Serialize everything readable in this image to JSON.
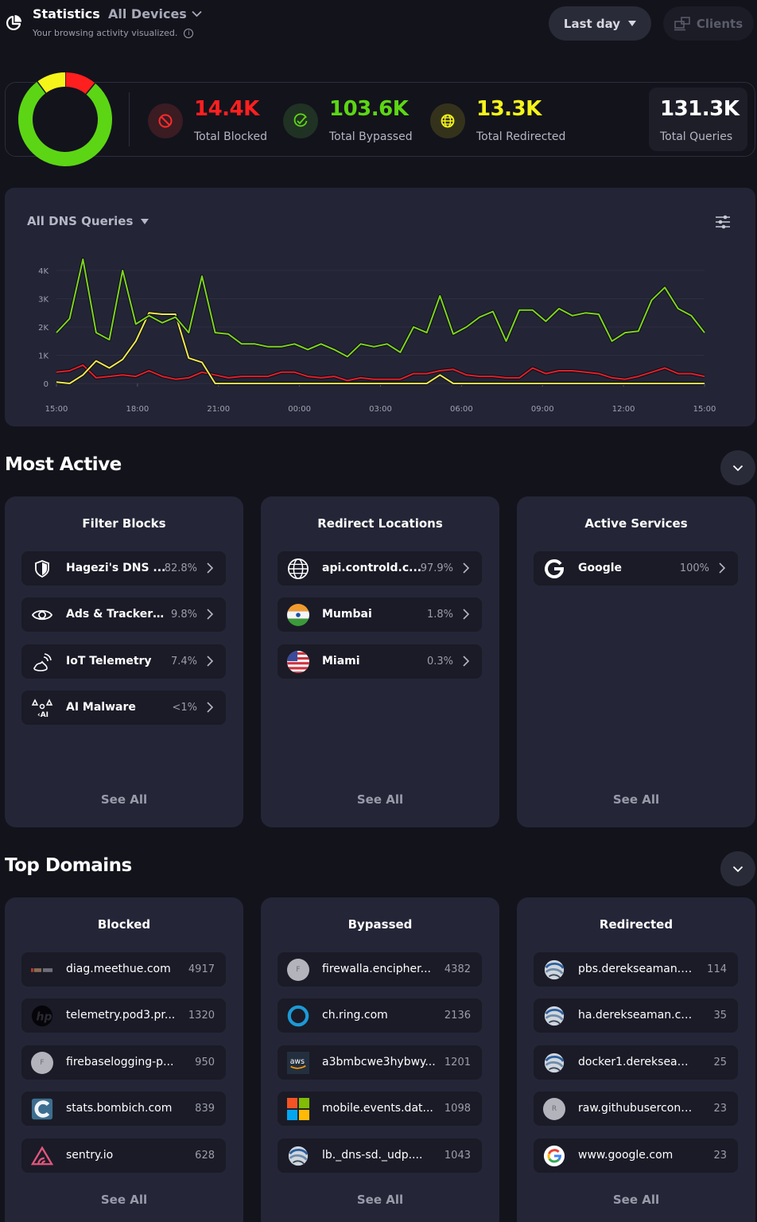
{
  "header": {
    "title": "Statistics",
    "device_selector": "All Devices",
    "subtitle": "Your browsing activity visualized.",
    "time_range": "Last day",
    "clients_button": "Clients"
  },
  "summary": {
    "blocked": {
      "value": "14.4K",
      "label": "Total Blocked",
      "color": "#ff1f1f"
    },
    "bypassed": {
      "value": "103.6K",
      "label": "Total Bypassed",
      "color": "#5cd614"
    },
    "redirected": {
      "value": "13.3K",
      "label": "Total Redirected",
      "color": "#f5f51a"
    },
    "total": {
      "value": "131.3K",
      "label": "Total Queries"
    },
    "donut": {
      "slices": [
        {
          "name": "Bypassed",
          "value": 103.6,
          "color": "#5cd614"
        },
        {
          "name": "Redirected",
          "value": 13.3,
          "color": "#f5f51a"
        },
        {
          "name": "Blocked",
          "value": 14.4,
          "color": "#ff1f1f"
        }
      ]
    }
  },
  "chart_data": {
    "type": "line",
    "title": "All DNS Queries",
    "xlabel": "",
    "ylabel": "",
    "x_ticks": [
      "15:00",
      "18:00",
      "21:00",
      "00:00",
      "03:00",
      "06:00",
      "09:00",
      "12:00",
      "15:00"
    ],
    "y_ticks": [
      "0",
      "1K",
      "2K",
      "3K",
      "4K"
    ],
    "ylim": [
      0,
      4000
    ],
    "interval_minutes": 30,
    "grid": true,
    "series": [
      {
        "name": "Bypassed",
        "color": "#7ed321",
        "values": [
          1800,
          2300,
          4400,
          1800,
          1550,
          4000,
          2100,
          2400,
          2150,
          2350,
          1800,
          3800,
          1800,
          1750,
          1400,
          1400,
          1300,
          1300,
          1400,
          1200,
          1400,
          1200,
          950,
          1400,
          1300,
          1400,
          1100,
          2000,
          1800,
          3100,
          1750,
          2000,
          2350,
          2550,
          1500,
          2600,
          2600,
          2200,
          2650,
          2400,
          2500,
          2450,
          1500,
          1800,
          1850,
          2950,
          3400,
          2650,
          2400,
          1800
        ]
      },
      {
        "name": "Blocked",
        "color": "#e0202a",
        "values": [
          400,
          450,
          650,
          200,
          250,
          300,
          250,
          450,
          250,
          150,
          200,
          400,
          300,
          200,
          250,
          250,
          250,
          400,
          400,
          250,
          200,
          250,
          100,
          200,
          150,
          150,
          150,
          350,
          350,
          450,
          500,
          300,
          250,
          250,
          200,
          200,
          550,
          350,
          450,
          450,
          400,
          350,
          200,
          150,
          250,
          400,
          550,
          350,
          350,
          250
        ]
      },
      {
        "name": "Redirected",
        "color": "#f2e94e",
        "values": [
          50,
          0,
          300,
          800,
          550,
          850,
          1500,
          2500,
          2450,
          2450,
          900,
          750,
          0,
          0,
          0,
          0,
          0,
          0,
          0,
          0,
          0,
          0,
          0,
          0,
          0,
          0,
          0,
          0,
          0,
          300,
          0,
          0,
          0,
          0,
          0,
          0,
          0,
          0,
          0,
          0,
          0,
          0,
          0,
          0,
          0,
          0,
          0,
          0,
          0,
          0
        ]
      }
    ]
  },
  "most_active": {
    "title": "Most Active",
    "cards": [
      {
        "title": "Filter Blocks",
        "see_all": "See All",
        "items": [
          {
            "icon": "shield-icon",
            "name": "Hagezi's DNS ...",
            "value": "82.8%"
          },
          {
            "icon": "eye-icon",
            "name": "Ads & Trackers...",
            "value": "9.8%"
          },
          {
            "icon": "iot-signal-icon",
            "name": "IoT Telemetry",
            "value": "7.4%"
          },
          {
            "icon": "ai-malware-icon",
            "name": "AI Malware",
            "value": "<1%"
          }
        ]
      },
      {
        "title": "Redirect Locations",
        "see_all": "See All",
        "items": [
          {
            "icon": "globe-icon",
            "name": "api.controld.c...",
            "value": "97.9%"
          },
          {
            "icon": "india-flag-icon",
            "name": "Mumbai",
            "value": "1.8%"
          },
          {
            "icon": "usa-flag-icon",
            "name": "Miami",
            "value": "0.3%"
          }
        ]
      },
      {
        "title": "Active Services",
        "see_all": "See All",
        "items": [
          {
            "icon": "google-service-icon",
            "name": "Google",
            "value": "100%"
          }
        ]
      }
    ]
  },
  "top_domains": {
    "title": "Top Domains",
    "cards": [
      {
        "title": "Blocked",
        "see_all": "See All",
        "items": [
          {
            "icon": "meethue-logo-icon",
            "name": "diag.meethue.com",
            "value": "4917"
          },
          {
            "icon": "hp-logo-icon",
            "name": "telemetry.pod3.pr...",
            "value": "1320"
          },
          {
            "icon": "letter-f-icon",
            "letter": "F",
            "name": "firebaselogging-p...",
            "value": "950"
          },
          {
            "icon": "bombich-logo-icon",
            "name": "stats.bombich.com",
            "value": "839"
          },
          {
            "icon": "sentry-logo-icon",
            "name": "sentry.io",
            "value": "628"
          }
        ]
      },
      {
        "title": "Bypassed",
        "see_all": "See All",
        "items": [
          {
            "icon": "letter-f-icon",
            "letter": "F",
            "name": "firewalla.encipher...",
            "value": "4382"
          },
          {
            "icon": "ring-logo-icon",
            "name": "ch.ring.com",
            "value": "2136"
          },
          {
            "icon": "aws-logo-icon",
            "name": "a3bmbcwe3hybwy...",
            "value": "1201"
          },
          {
            "icon": "microsoft-logo-icon",
            "name": "mobile.events.dat...",
            "value": "1098"
          },
          {
            "icon": "swirl-logo-icon",
            "name": "lb._dns-sd._udp....",
            "value": "1043"
          }
        ]
      },
      {
        "title": "Redirected",
        "see_all": "See All",
        "items": [
          {
            "icon": "swirl-logo-icon",
            "name": "pbs.derekseaman.c...",
            "value": "114"
          },
          {
            "icon": "swirl-logo-icon",
            "name": "ha.derekseaman.co...",
            "value": "35"
          },
          {
            "icon": "swirl-logo-icon",
            "name": "docker1.derekseam...",
            "value": "25"
          },
          {
            "icon": "letter-r-icon",
            "letter": "R",
            "name": "raw.githubusercont...",
            "value": "23"
          },
          {
            "icon": "google-logo-icon",
            "name": "www.google.com",
            "value": "23"
          }
        ]
      }
    ]
  }
}
